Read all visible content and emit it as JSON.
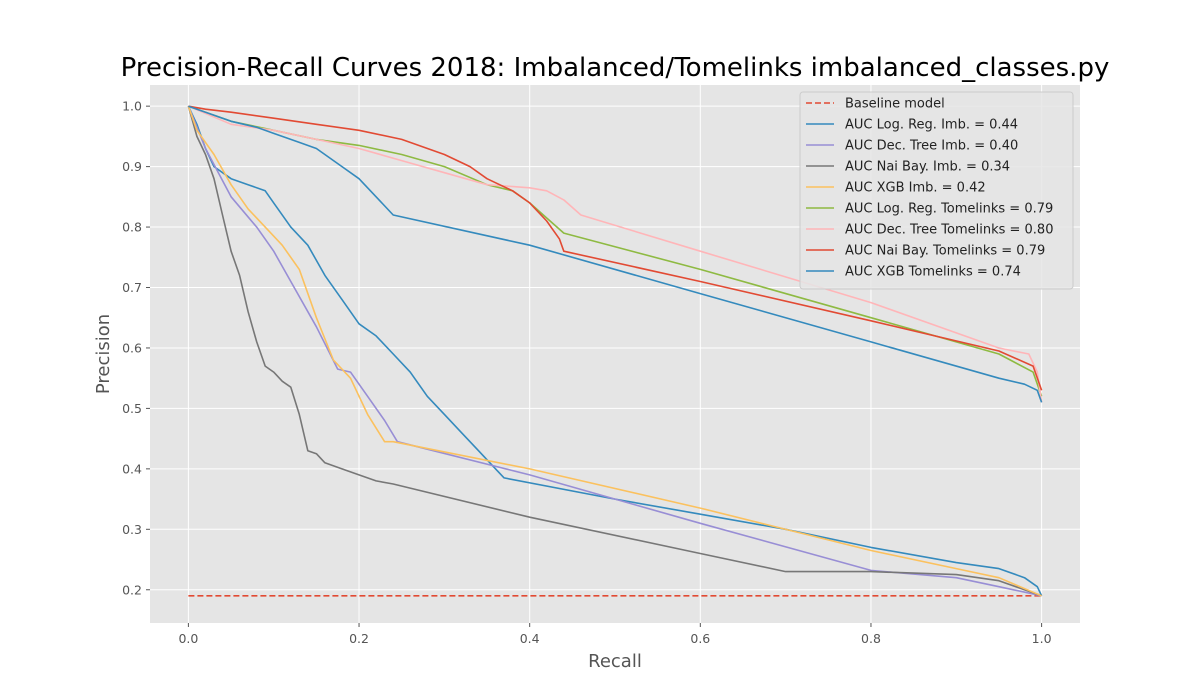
{
  "chart_data": {
    "type": "line",
    "title": "Precision-Recall Curves 2018: Imbalanced/Tomelinks imbalanced_classes.py",
    "xlabel": "Recall",
    "ylabel": "Precision",
    "xlim": [
      -0.045,
      1.045
    ],
    "ylim": [
      0.145,
      1.035
    ],
    "xticks": [
      0.0,
      0.2,
      0.4,
      0.6,
      0.8,
      1.0
    ],
    "xtick_labels": [
      "0.0",
      "0.2",
      "0.4",
      "0.6",
      "0.8",
      "1.0"
    ],
    "yticks": [
      0.2,
      0.3,
      0.4,
      0.5,
      0.6,
      0.7,
      0.8,
      0.9,
      1.0
    ],
    "ytick_labels": [
      "0.2",
      "0.3",
      "0.4",
      "0.5",
      "0.6",
      "0.7",
      "0.8",
      "0.9",
      "1.0"
    ],
    "grid": true,
    "legend_position": "top-right",
    "series": [
      {
        "name": "Baseline model",
        "color": "#E24A33",
        "dashed": true,
        "x": [
          0.0,
          1.0
        ],
        "y": [
          0.19,
          0.19
        ]
      },
      {
        "name": "AUC Log. Reg. Imb. = 0.44",
        "color": "#348ABD",
        "dashed": false,
        "x": [
          0.0,
          0.01,
          0.02,
          0.03,
          0.05,
          0.07,
          0.09,
          0.1,
          0.12,
          0.14,
          0.16,
          0.18,
          0.2,
          0.22,
          0.24,
          0.26,
          0.28,
          0.3,
          0.32,
          0.34,
          0.36,
          0.37,
          0.5,
          0.6,
          0.7,
          0.8,
          0.9,
          0.95,
          0.98,
          0.995,
          1.0
        ],
        "y": [
          1.0,
          0.97,
          0.93,
          0.9,
          0.88,
          0.87,
          0.86,
          0.84,
          0.8,
          0.77,
          0.72,
          0.68,
          0.64,
          0.62,
          0.59,
          0.56,
          0.52,
          0.49,
          0.46,
          0.43,
          0.4,
          0.385,
          0.35,
          0.325,
          0.3,
          0.27,
          0.245,
          0.235,
          0.22,
          0.205,
          0.19
        ]
      },
      {
        "name": "AUC Dec. Tree Imb. = 0.40",
        "color": "#988ED5",
        "dashed": false,
        "x": [
          0.0,
          0.02,
          0.05,
          0.08,
          0.1,
          0.12,
          0.15,
          0.175,
          0.19,
          0.21,
          0.23,
          0.245,
          0.4,
          0.6,
          0.8,
          0.9,
          0.95,
          1.0
        ],
        "y": [
          1.0,
          0.93,
          0.85,
          0.8,
          0.76,
          0.71,
          0.635,
          0.565,
          0.56,
          0.52,
          0.48,
          0.445,
          0.39,
          0.31,
          0.232,
          0.22,
          0.205,
          0.19
        ]
      },
      {
        "name": "AUC Nai Bay. Imb. = 0.34",
        "color": "#777777",
        "dashed": false,
        "x": [
          0.0,
          0.01,
          0.02,
          0.03,
          0.04,
          0.05,
          0.06,
          0.07,
          0.08,
          0.09,
          0.1,
          0.11,
          0.12,
          0.13,
          0.14,
          0.15,
          0.16,
          0.18,
          0.2,
          0.22,
          0.24,
          0.4,
          0.6,
          0.7,
          0.8,
          0.9,
          0.95,
          1.0
        ],
        "y": [
          1.0,
          0.95,
          0.92,
          0.88,
          0.82,
          0.76,
          0.72,
          0.66,
          0.61,
          0.57,
          0.56,
          0.545,
          0.535,
          0.49,
          0.43,
          0.425,
          0.41,
          0.4,
          0.39,
          0.38,
          0.375,
          0.32,
          0.26,
          0.23,
          0.23,
          0.225,
          0.215,
          0.19
        ]
      },
      {
        "name": "AUC XGB Imb. = 0.42",
        "color": "#FBC15E",
        "dashed": false,
        "x": [
          0.0,
          0.01,
          0.03,
          0.05,
          0.07,
          0.09,
          0.11,
          0.13,
          0.15,
          0.17,
          0.19,
          0.21,
          0.23,
          0.24,
          0.4,
          0.6,
          0.8,
          0.9,
          0.95,
          1.0
        ],
        "y": [
          1.0,
          0.96,
          0.92,
          0.87,
          0.83,
          0.8,
          0.77,
          0.73,
          0.65,
          0.58,
          0.55,
          0.49,
          0.445,
          0.445,
          0.4,
          0.335,
          0.265,
          0.235,
          0.22,
          0.19
        ]
      },
      {
        "name": "AUC Log. Reg. Tomelinks = 0.79",
        "color": "#8EBA42",
        "dashed": false,
        "x": [
          0.0,
          0.02,
          0.05,
          0.1,
          0.15,
          0.2,
          0.25,
          0.3,
          0.35,
          0.38,
          0.4,
          0.42,
          0.44,
          0.6,
          0.8,
          0.95,
          0.99,
          1.0
        ],
        "y": [
          1.0,
          0.99,
          0.975,
          0.96,
          0.945,
          0.935,
          0.92,
          0.9,
          0.87,
          0.86,
          0.84,
          0.815,
          0.79,
          0.73,
          0.65,
          0.59,
          0.56,
          0.52
        ]
      },
      {
        "name": "AUC Dec. Tree Tomelinks = 0.80",
        "color": "#FFB5B8",
        "dashed": false,
        "x": [
          0.0,
          0.05,
          0.1,
          0.15,
          0.2,
          0.25,
          0.3,
          0.35,
          0.4,
          0.42,
          0.44,
          0.46,
          0.6,
          0.8,
          0.95,
          0.985,
          0.995,
          1.0
        ],
        "y": [
          1.0,
          0.97,
          0.96,
          0.945,
          0.93,
          0.91,
          0.89,
          0.87,
          0.865,
          0.86,
          0.845,
          0.82,
          0.76,
          0.675,
          0.6,
          0.59,
          0.56,
          0.51
        ]
      },
      {
        "name": "AUC Nai Bay. Tomelinks = 0.79",
        "color": "#E24A33",
        "dashed": false,
        "x": [
          0.0,
          0.02,
          0.05,
          0.1,
          0.15,
          0.2,
          0.25,
          0.3,
          0.33,
          0.35,
          0.38,
          0.4,
          0.42,
          0.435,
          0.44,
          0.6,
          0.8,
          0.95,
          0.99,
          1.0
        ],
        "y": [
          1.0,
          0.995,
          0.99,
          0.98,
          0.97,
          0.96,
          0.945,
          0.92,
          0.9,
          0.88,
          0.86,
          0.84,
          0.81,
          0.78,
          0.76,
          0.71,
          0.645,
          0.595,
          0.57,
          0.53
        ]
      },
      {
        "name": "AUC XGB Tomelinks = 0.74",
        "color": "#348ABD",
        "dashed": false,
        "x": [
          0.0,
          0.02,
          0.05,
          0.08,
          0.1,
          0.13,
          0.15,
          0.18,
          0.2,
          0.22,
          0.24,
          0.4,
          0.6,
          0.8,
          0.95,
          0.98,
          0.995,
          1.0
        ],
        "y": [
          1.0,
          0.99,
          0.975,
          0.965,
          0.955,
          0.94,
          0.93,
          0.9,
          0.88,
          0.85,
          0.82,
          0.77,
          0.69,
          0.61,
          0.55,
          0.54,
          0.53,
          0.51
        ]
      }
    ]
  }
}
